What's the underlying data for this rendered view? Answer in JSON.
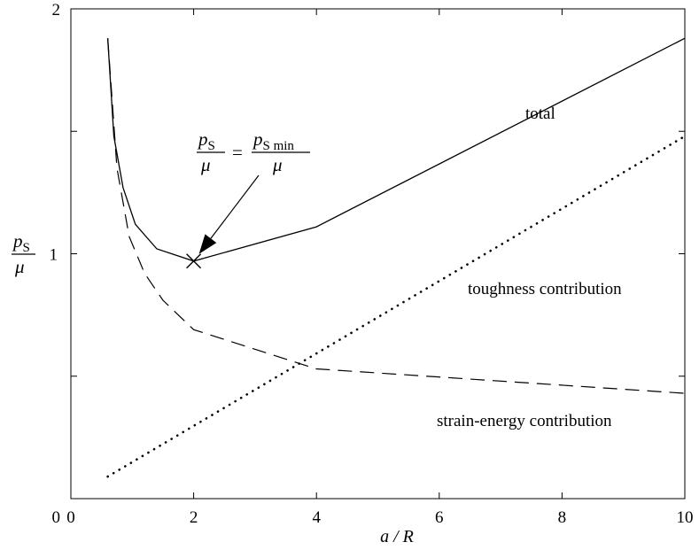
{
  "chart_data": {
    "type": "line",
    "xlabel": "a / R",
    "ylabel": {
      "numerator": "p",
      "numerator_sub": "S",
      "denominator": "μ"
    },
    "xlim": [
      0,
      10
    ],
    "ylim": [
      0,
      2
    ],
    "x_ticks": [
      0,
      2,
      4,
      6,
      8,
      10
    ],
    "y_ticks": [
      0,
      1,
      2
    ],
    "y_minor_ticks": [
      0.5,
      1.5
    ],
    "grid": false,
    "legend": "none",
    "series": [
      {
        "name": "total",
        "style": "solid",
        "x": [
          0.6,
          0.7,
          0.85,
          1.05,
          1.4,
          2.0,
          4.0,
          10.0
        ],
        "y": [
          1.88,
          1.48,
          1.27,
          1.12,
          1.02,
          0.97,
          1.11,
          1.88
        ]
      },
      {
        "name": "toughness contribution",
        "style": "dotted",
        "x": [
          0.6,
          10.0
        ],
        "y": [
          0.09,
          1.48
        ]
      },
      {
        "name": "strain-energy contribution",
        "style": "dashed",
        "x": [
          0.6,
          0.75,
          0.95,
          1.2,
          1.5,
          2.0,
          4.0,
          10.0
        ],
        "y": [
          1.88,
          1.35,
          1.07,
          0.92,
          0.81,
          0.69,
          0.53,
          0.43
        ]
      }
    ],
    "minimum_marker": {
      "x": 2.0,
      "y": 0.97
    },
    "annotations": {
      "minimum_equation": {
        "left_num": "p",
        "left_num_sub": "S",
        "left_den": "μ",
        "equals": "=",
        "right_num": "p",
        "right_num_sub": "S min",
        "right_den": "μ"
      }
    },
    "line_color": "#000000"
  }
}
